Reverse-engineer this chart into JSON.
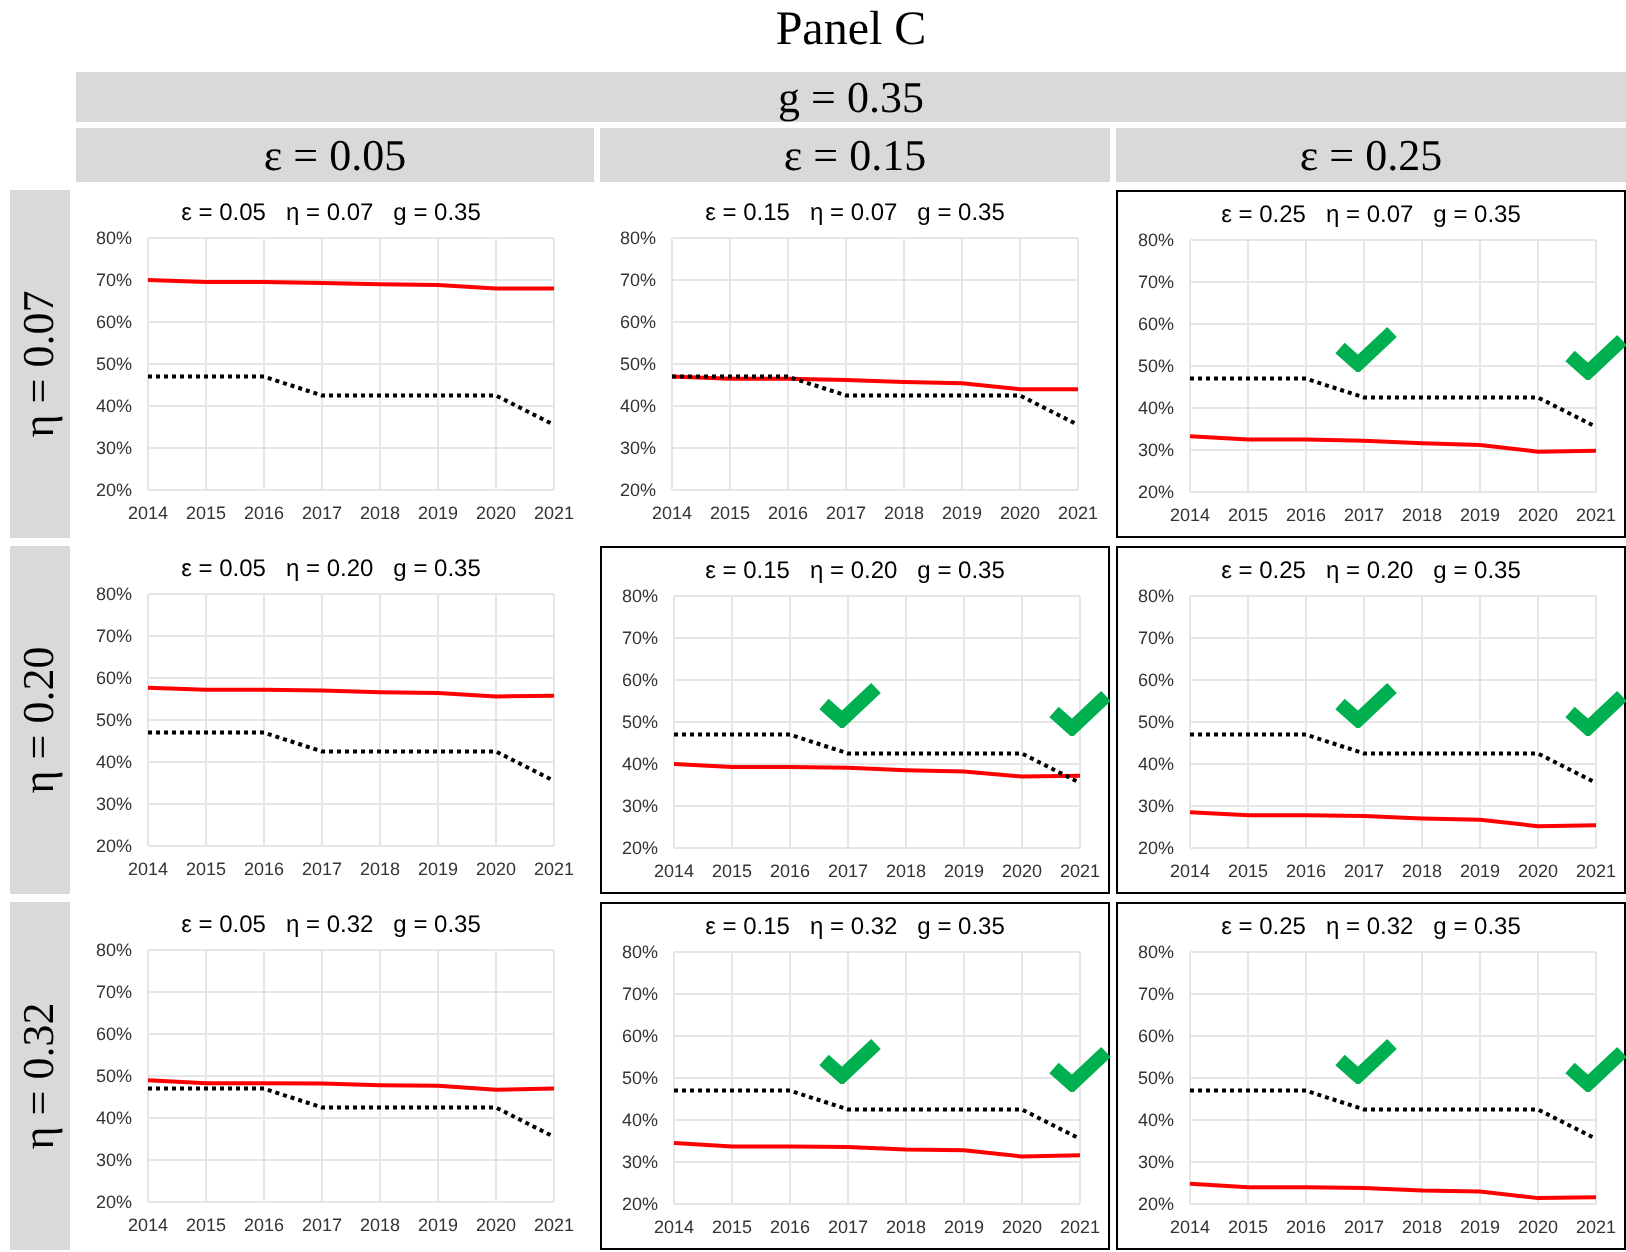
{
  "chart_data": [
    {
      "type": "line",
      "title": "ε = 0.05   η = 0.07   g = 0.35",
      "annotations": [
        "Panel C",
        "g = 0.35",
        "ε = 0.05",
        "η = 0.07"
      ],
      "x": [
        2014,
        2015,
        2016,
        2017,
        2018,
        2019,
        2020,
        2021
      ],
      "xlim": [
        2014,
        2021
      ],
      "xticks": [
        2014,
        2015,
        2016,
        2017,
        2018,
        2019,
        2020,
        2021
      ],
      "ylim": [
        20,
        80
      ],
      "yticks": [
        {
          "value": 20,
          "label": "20%"
        },
        {
          "value": 30,
          "label": "30%"
        },
        {
          "value": 40,
          "label": "40%"
        },
        {
          "value": 50,
          "label": "50%"
        },
        {
          "value": 60,
          "label": "60%"
        },
        {
          "value": 70,
          "label": "70%"
        },
        {
          "value": 80,
          "label": "80%"
        }
      ],
      "grid": true,
      "marker": "none",
      "legend": false,
      "series": [
        {
          "color": "#ff0000",
          "line_style": "solid",
          "values": [
            70,
            69.5,
            69.5,
            69.3,
            69,
            68.8,
            68,
            68
          ]
        },
        {
          "color": "#000000",
          "line_style": "dotted",
          "values": [
            47,
            47,
            47,
            42.5,
            42.5,
            42.5,
            42.5,
            35.5
          ]
        }
      ]
    },
    {
      "type": "line",
      "title": "ε = 0.15   η = 0.07   g = 0.35",
      "annotations": [
        "ε = 0.15"
      ],
      "x": [
        2014,
        2015,
        2016,
        2017,
        2018,
        2019,
        2020,
        2021
      ],
      "xlim": [
        2014,
        2021
      ],
      "xticks": [
        2014,
        2015,
        2016,
        2017,
        2018,
        2019,
        2020,
        2021
      ],
      "ylim": [
        20,
        80
      ],
      "yticks": [
        {
          "value": 20,
          "label": "20%"
        },
        {
          "value": 30,
          "label": "30%"
        },
        {
          "value": 40,
          "label": "40%"
        },
        {
          "value": 50,
          "label": "50%"
        },
        {
          "value": 60,
          "label": "60%"
        },
        {
          "value": 70,
          "label": "70%"
        },
        {
          "value": 80,
          "label": "80%"
        }
      ],
      "grid": true,
      "marker": "none",
      "legend": false,
      "series": [
        {
          "color": "#ff0000",
          "line_style": "solid",
          "values": [
            47,
            46.5,
            46.5,
            46.2,
            45.7,
            45.4,
            44,
            44
          ]
        },
        {
          "color": "#000000",
          "line_style": "dotted",
          "values": [
            47,
            47,
            47,
            42.5,
            42.5,
            42.5,
            42.5,
            35.5
          ]
        }
      ]
    },
    {
      "type": "line",
      "title": "ε = 0.25   η = 0.07   g = 0.35",
      "annotations": [
        "ε = 0.25"
      ],
      "x": [
        2014,
        2015,
        2016,
        2017,
        2018,
        2019,
        2020,
        2021
      ],
      "xlim": [
        2014,
        2021
      ],
      "xticks": [
        2014,
        2015,
        2016,
        2017,
        2018,
        2019,
        2020,
        2021
      ],
      "ylim": [
        20,
        80
      ],
      "yticks": [
        {
          "value": 20,
          "label": "20%"
        },
        {
          "value": 30,
          "label": "30%"
        },
        {
          "value": 40,
          "label": "40%"
        },
        {
          "value": 50,
          "label": "50%"
        },
        {
          "value": 60,
          "label": "60%"
        },
        {
          "value": 70,
          "label": "70%"
        },
        {
          "value": 80,
          "label": "80%"
        }
      ],
      "grid": true,
      "marker": "none",
      "legend": false,
      "series": [
        {
          "color": "#ff0000",
          "line_style": "solid",
          "values": [
            33.3,
            32.5,
            32.5,
            32.2,
            31.6,
            31.2,
            29.6,
            29.8
          ]
        },
        {
          "color": "#000000",
          "line_style": "dotted",
          "values": [
            47,
            47,
            47,
            42.5,
            42.5,
            42.5,
            42.5,
            35.5
          ]
        }
      ]
    },
    {
      "type": "line",
      "title": "ε = 0.05   η = 0.20   g = 0.35",
      "annotations": [
        "η = 0.20"
      ],
      "x": [
        2014,
        2015,
        2016,
        2017,
        2018,
        2019,
        2020,
        2021
      ],
      "xlim": [
        2014,
        2021
      ],
      "xticks": [
        2014,
        2015,
        2016,
        2017,
        2018,
        2019,
        2020,
        2021
      ],
      "ylim": [
        20,
        80
      ],
      "yticks": [
        {
          "value": 20,
          "label": "20%"
        },
        {
          "value": 30,
          "label": "30%"
        },
        {
          "value": 40,
          "label": "40%"
        },
        {
          "value": 50,
          "label": "50%"
        },
        {
          "value": 60,
          "label": "60%"
        },
        {
          "value": 70,
          "label": "70%"
        },
        {
          "value": 80,
          "label": "80%"
        }
      ],
      "grid": true,
      "marker": "none",
      "legend": false,
      "series": [
        {
          "color": "#ff0000",
          "line_style": "solid",
          "values": [
            57.7,
            57.2,
            57.2,
            57,
            56.6,
            56.4,
            55.6,
            55.8
          ]
        },
        {
          "color": "#000000",
          "line_style": "dotted",
          "values": [
            47,
            47,
            47,
            42.5,
            42.5,
            42.5,
            42.5,
            35.5
          ]
        }
      ]
    },
    {
      "type": "line",
      "title": "ε = 0.15   η = 0.20   g = 0.35",
      "x": [
        2014,
        2015,
        2016,
        2017,
        2018,
        2019,
        2020,
        2021
      ],
      "xlim": [
        2014,
        2021
      ],
      "xticks": [
        2014,
        2015,
        2016,
        2017,
        2018,
        2019,
        2020,
        2021
      ],
      "ylim": [
        20,
        80
      ],
      "yticks": [
        {
          "value": 20,
          "label": "20%"
        },
        {
          "value": 30,
          "label": "30%"
        },
        {
          "value": 40,
          "label": "40%"
        },
        {
          "value": 50,
          "label": "50%"
        },
        {
          "value": 60,
          "label": "60%"
        },
        {
          "value": 70,
          "label": "70%"
        },
        {
          "value": 80,
          "label": "80%"
        }
      ],
      "grid": true,
      "marker": "none",
      "legend": false,
      "series": [
        {
          "color": "#ff0000",
          "line_style": "solid",
          "values": [
            40,
            39.3,
            39.3,
            39.1,
            38.5,
            38.2,
            37,
            37.2
          ]
        },
        {
          "color": "#000000",
          "line_style": "dotted",
          "values": [
            47,
            47,
            47,
            42.5,
            42.5,
            42.5,
            42.5,
            35.5
          ]
        }
      ]
    },
    {
      "type": "line",
      "title": "ε = 0.25   η = 0.20   g = 0.35",
      "x": [
        2014,
        2015,
        2016,
        2017,
        2018,
        2019,
        2020,
        2021
      ],
      "xlim": [
        2014,
        2021
      ],
      "xticks": [
        2014,
        2015,
        2016,
        2017,
        2018,
        2019,
        2020,
        2021
      ],
      "ylim": [
        20,
        80
      ],
      "yticks": [
        {
          "value": 20,
          "label": "20%"
        },
        {
          "value": 30,
          "label": "30%"
        },
        {
          "value": 40,
          "label": "40%"
        },
        {
          "value": 50,
          "label": "50%"
        },
        {
          "value": 60,
          "label": "60%"
        },
        {
          "value": 70,
          "label": "70%"
        },
        {
          "value": 80,
          "label": "80%"
        }
      ],
      "grid": true,
      "marker": "none",
      "legend": false,
      "series": [
        {
          "color": "#ff0000",
          "line_style": "solid",
          "values": [
            28.5,
            27.8,
            27.8,
            27.6,
            27,
            26.7,
            25.2,
            25.4
          ]
        },
        {
          "color": "#000000",
          "line_style": "dotted",
          "values": [
            47,
            47,
            47,
            42.5,
            42.5,
            42.5,
            42.5,
            35.5
          ]
        }
      ]
    },
    {
      "type": "line",
      "title": "ε = 0.05   η = 0.32   g = 0.35",
      "annotations": [
        "η = 0.32"
      ],
      "x": [
        2014,
        2015,
        2016,
        2017,
        2018,
        2019,
        2020,
        2021
      ],
      "xlim": [
        2014,
        2021
      ],
      "xticks": [
        2014,
        2015,
        2016,
        2017,
        2018,
        2019,
        2020,
        2021
      ],
      "ylim": [
        20,
        80
      ],
      "yticks": [
        {
          "value": 20,
          "label": "20%"
        },
        {
          "value": 30,
          "label": "30%"
        },
        {
          "value": 40,
          "label": "40%"
        },
        {
          "value": 50,
          "label": "50%"
        },
        {
          "value": 60,
          "label": "60%"
        },
        {
          "value": 70,
          "label": "70%"
        },
        {
          "value": 80,
          "label": "80%"
        }
      ],
      "grid": true,
      "marker": "none",
      "legend": false,
      "series": [
        {
          "color": "#ff0000",
          "line_style": "solid",
          "values": [
            49,
            48.3,
            48.3,
            48.2,
            47.8,
            47.7,
            46.7,
            47
          ]
        },
        {
          "color": "#000000",
          "line_style": "dotted",
          "values": [
            47,
            47,
            47,
            42.5,
            42.5,
            42.5,
            42.5,
            35.5
          ]
        }
      ]
    },
    {
      "type": "line",
      "title": "ε = 0.15   η = 0.32   g = 0.35",
      "x": [
        2014,
        2015,
        2016,
        2017,
        2018,
        2019,
        2020,
        2021
      ],
      "xlim": [
        2014,
        2021
      ],
      "xticks": [
        2014,
        2015,
        2016,
        2017,
        2018,
        2019,
        2020,
        2021
      ],
      "ylim": [
        20,
        80
      ],
      "yticks": [
        {
          "value": 20,
          "label": "20%"
        },
        {
          "value": 30,
          "label": "30%"
        },
        {
          "value": 40,
          "label": "40%"
        },
        {
          "value": 50,
          "label": "50%"
        },
        {
          "value": 60,
          "label": "60%"
        },
        {
          "value": 70,
          "label": "70%"
        },
        {
          "value": 80,
          "label": "80%"
        }
      ],
      "grid": true,
      "marker": "none",
      "legend": false,
      "series": [
        {
          "color": "#ff0000",
          "line_style": "solid",
          "values": [
            34.5,
            33.7,
            33.7,
            33.6,
            33,
            32.8,
            31.3,
            31.6
          ]
        },
        {
          "color": "#000000",
          "line_style": "dotted",
          "values": [
            47,
            47,
            47,
            42.5,
            42.5,
            42.5,
            42.5,
            35.5
          ]
        }
      ]
    },
    {
      "type": "line",
      "title": "ε = 0.25   η = 0.32   g = 0.35",
      "x": [
        2014,
        2015,
        2016,
        2017,
        2018,
        2019,
        2020,
        2021
      ],
      "xlim": [
        2014,
        2021
      ],
      "xticks": [
        2014,
        2015,
        2016,
        2017,
        2018,
        2019,
        2020,
        2021
      ],
      "ylim": [
        20,
        80
      ],
      "yticks": [
        {
          "value": 20,
          "label": "20%"
        },
        {
          "value": 30,
          "label": "30%"
        },
        {
          "value": 40,
          "label": "40%"
        },
        {
          "value": 50,
          "label": "50%"
        },
        {
          "value": 60,
          "label": "60%"
        },
        {
          "value": 70,
          "label": "70%"
        },
        {
          "value": 80,
          "label": "80%"
        }
      ],
      "grid": true,
      "marker": "none",
      "legend": false,
      "series": [
        {
          "color": "#ff0000",
          "line_style": "solid",
          "values": [
            24.8,
            24,
            24,
            23.8,
            23.2,
            23,
            21.4,
            21.6
          ]
        },
        {
          "color": "#000000",
          "line_style": "dotted",
          "values": [
            47,
            47,
            47,
            42.5,
            42.5,
            42.5,
            42.5,
            35.5
          ]
        }
      ]
    }
  ]
}
